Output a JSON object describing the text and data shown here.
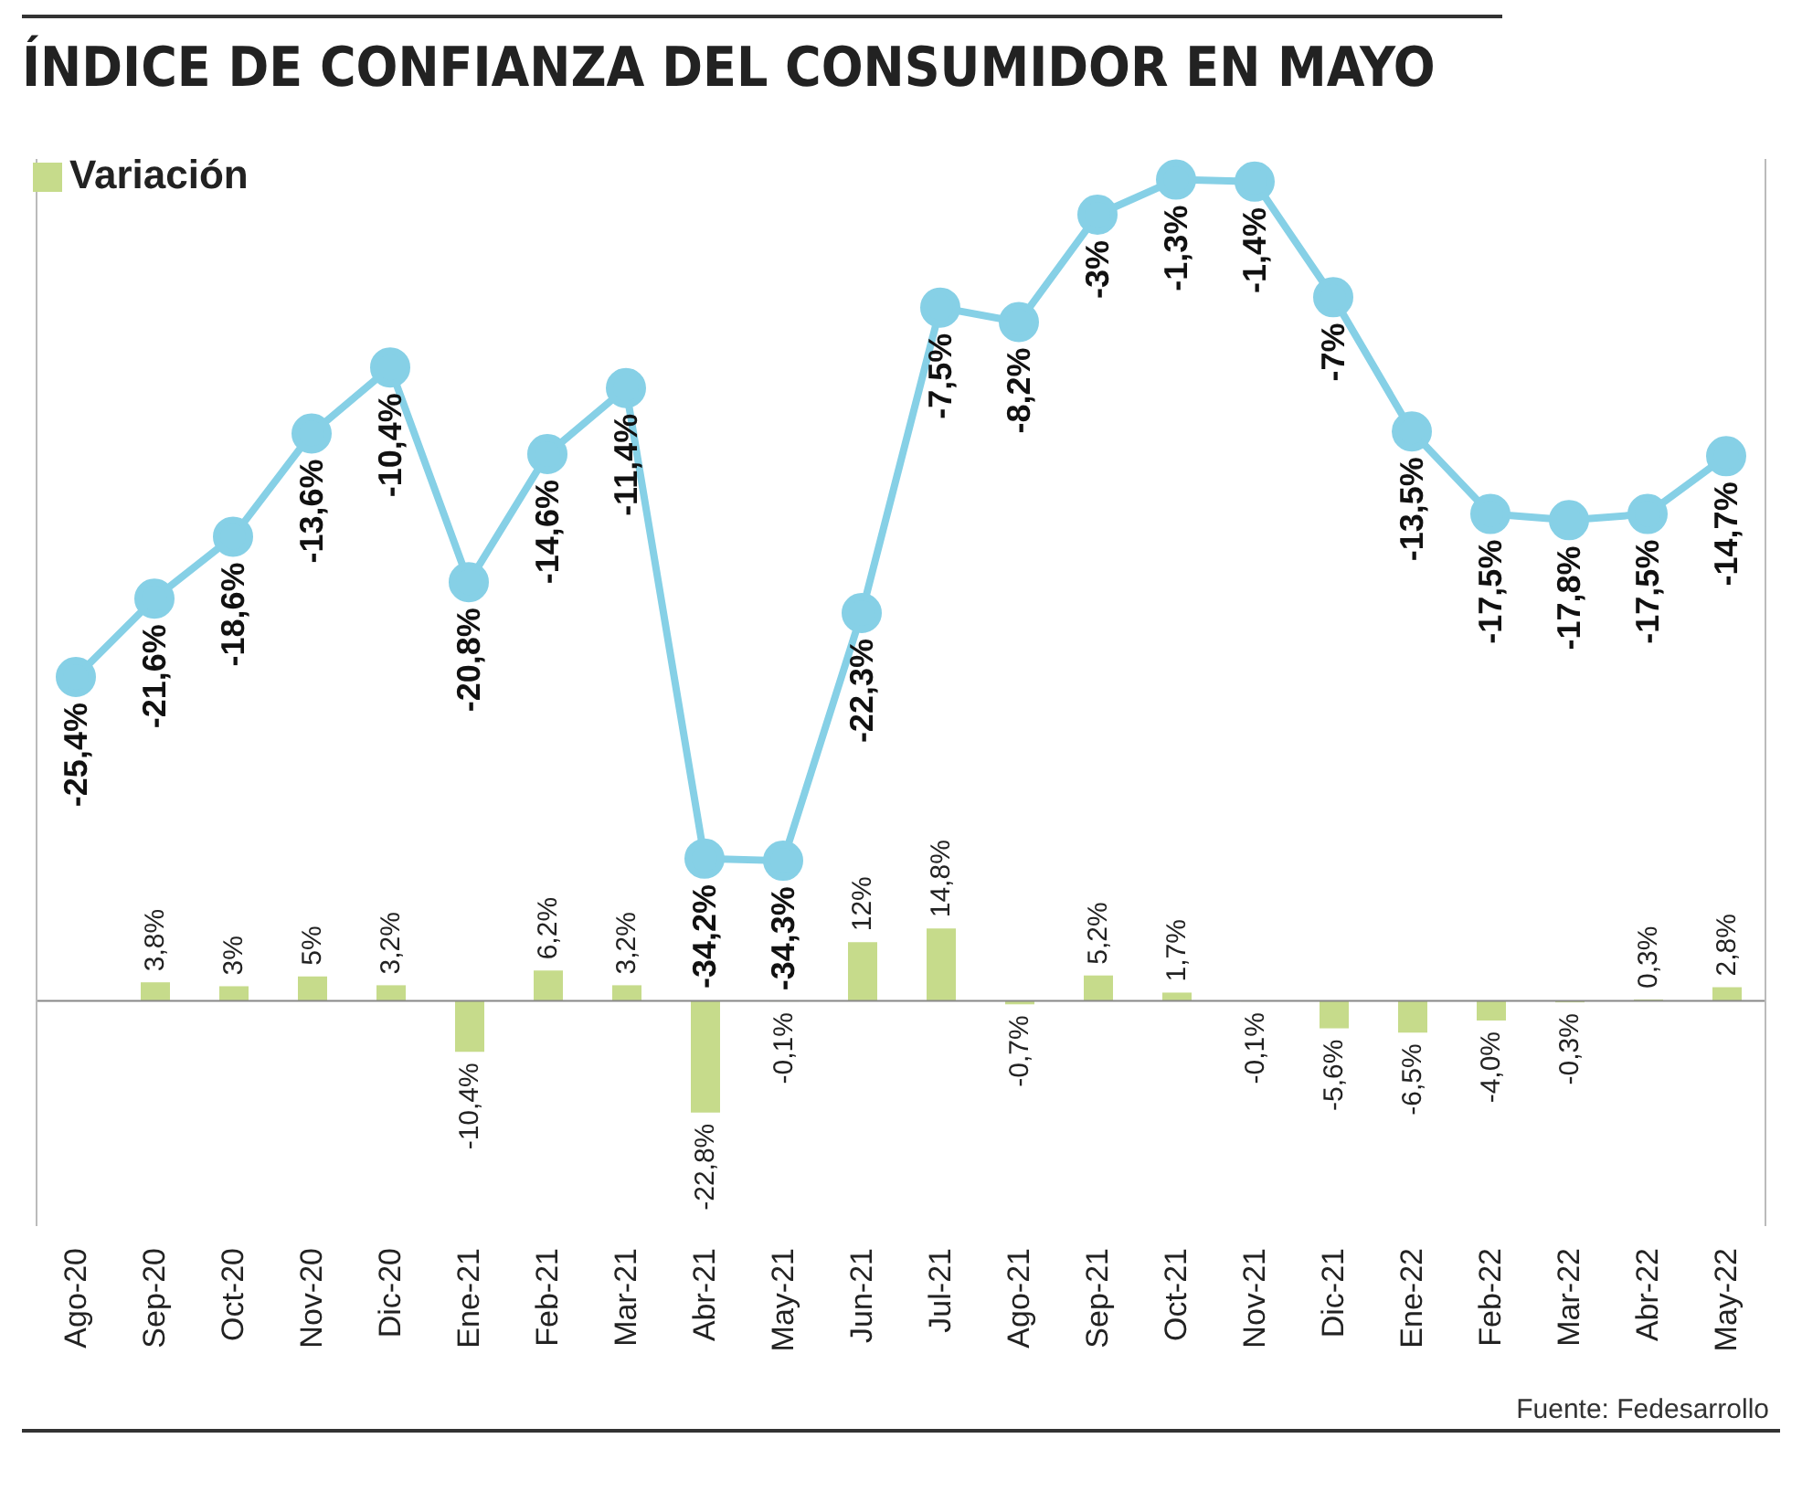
{
  "chart_data": {
    "type": "line",
    "ylim": [
      -46,
      172
    ],
    "y2lim": [
      -52,
      -0.3
    ],
    "tick_labels": false,
    "title": "ÍNDICE DE CONFIANZA DEL CONSUMIDOR EN MAYO",
    "categories": [
      "Ago-20",
      "Sep-20",
      "Oct-20",
      "Nov-20",
      "Dic-20",
      "Ene-21",
      "Feb-21",
      "Mar-21",
      "Abr-21",
      "May-21",
      "Jun-21",
      "Jul-21",
      "Ago-21",
      "Sep-21",
      "Oct-21",
      "Nov-21",
      "Dic-21",
      "Ene-22",
      "Feb-22",
      "Mar-22",
      "Abr-22",
      "May-22"
    ],
    "series": [
      {
        "axis": "y2",
        "color": "#86d0e6",
        "marker": "circle",
        "values": [
          -25.4,
          -21.6,
          -18.6,
          -13.6,
          -10.4,
          -20.8,
          -14.6,
          -11.4,
          -34.2,
          -34.3,
          -22.3,
          -7.5,
          -8.2,
          -3,
          -1.3,
          -1.4,
          -7,
          -13.5,
          -17.5,
          -17.8,
          -17.5,
          -14.7
        ],
        "value_labels": [
          "-25,4%",
          "-21,6%",
          "-18,6%",
          "-13,6%",
          "-10,4%",
          "-20,8%",
          "-14,6%",
          "-11,4%",
          "-34,2%",
          "-34,3%",
          "-22,3%",
          "-7,5%",
          "-8,2%",
          "-3%",
          "-1,3%",
          "-1,4%",
          "-7%",
          "-13,5%",
          "-17,5%",
          "-17,8%",
          "-17,5%",
          "-14,7%"
        ]
      },
      {
        "type": "bar",
        "name": "Variación",
        "color": "#c6db8b",
        "values": [
          null,
          3.8,
          3,
          5,
          3.2,
          -10.4,
          6.2,
          3.2,
          -22.8,
          -0.1,
          12,
          14.8,
          -0.7,
          5.2,
          1.7,
          -0.1,
          -5.6,
          -6.5,
          -4.0,
          -0.3,
          0.3,
          2.8
        ],
        "value_labels": [
          null,
          "3,8%",
          "3%",
          "5%",
          "3,2%",
          "-10,4%",
          "6,2%",
          "3,2%",
          "-22,8%",
          "-0,1%",
          "12%",
          "14,8%",
          "-0,7%",
          "5,2%",
          "1,7%",
          "-0,1%",
          "-5,6%",
          "-6,5%",
          "-4,0%",
          "-0,3%",
          "0,3%",
          "2,8%"
        ]
      }
    ],
    "legend": "top left",
    "annotations": [
      "Fuente: Fedesarrollo"
    ]
  }
}
